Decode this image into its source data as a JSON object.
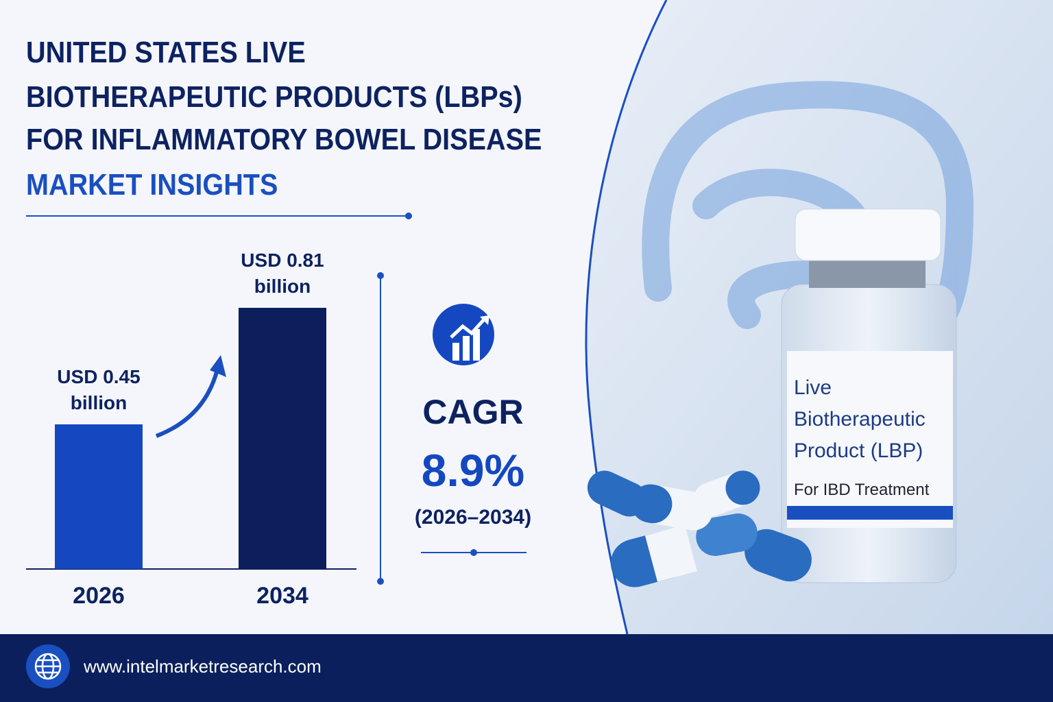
{
  "header": {
    "title_lines": [
      "UNITED STATES LIVE",
      "BIOTHERAPEUTIC PRODUCTS (LBPs)",
      "FOR INFLAMMATORY BOWEL DISEASE"
    ],
    "subtitle": "MARKET INSIGHTS"
  },
  "chart_data": {
    "type": "bar",
    "categories": [
      "2026",
      "2034"
    ],
    "values": [
      0.45,
      0.81
    ],
    "value_labels": [
      "USD 0.45 billion",
      "USD 0.81 billion"
    ],
    "colors": [
      "#1548c0",
      "#0c1f5c"
    ]
  },
  "cagr": {
    "label": "CAGR",
    "value": "8.9%",
    "period": "(2026–2034)"
  },
  "vial": {
    "name": "Live Biotherapeutic Product (LBP)",
    "use": "For IBD Treatment"
  },
  "footer": {
    "url": "www.intelmarketresearch.com"
  }
}
